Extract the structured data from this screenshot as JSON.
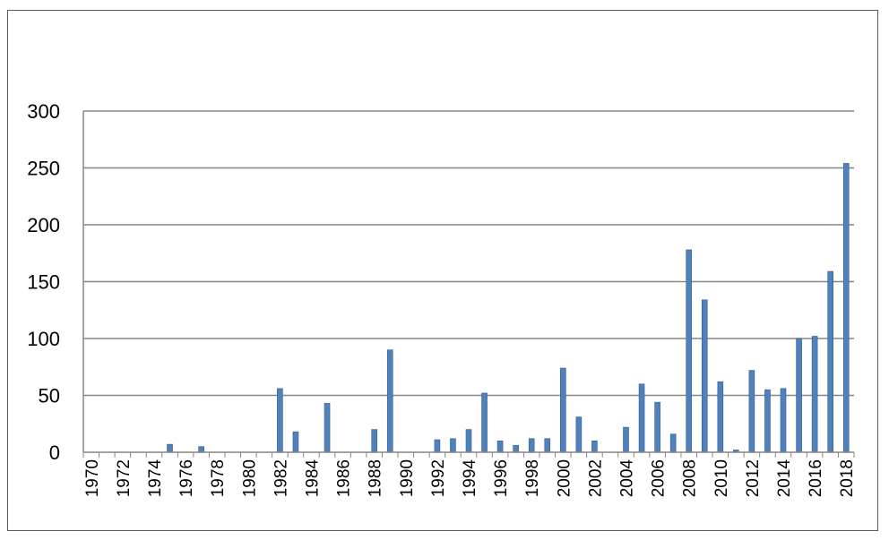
{
  "chart_data": {
    "type": "bar",
    "title": "",
    "xlabel": "",
    "ylabel": "",
    "ylim": [
      0,
      300
    ],
    "yticks": [
      0,
      50,
      100,
      150,
      200,
      250,
      300
    ],
    "grid": true,
    "legend": "none",
    "bar_color": "#4f81bd",
    "bar_edge_color": "#385d8a",
    "x_tick_labels": [
      "1970",
      "1972",
      "1974",
      "1976",
      "1978",
      "1980",
      "1982",
      "1984",
      "1986",
      "1988",
      "1990",
      "1992",
      "1994",
      "1996",
      "1998",
      "2000",
      "2002",
      "2004",
      "2006",
      "2008",
      "2010",
      "2012",
      "2014",
      "2016",
      "2018"
    ],
    "categories": [
      "1970",
      "1971",
      "1972",
      "1973",
      "1974",
      "1975",
      "1976",
      "1977",
      "1978",
      "1979",
      "1980",
      "1981",
      "1982",
      "1983",
      "1984",
      "1985",
      "1986",
      "1987",
      "1988",
      "1989",
      "1990",
      "1991",
      "1992",
      "1993",
      "1994",
      "1995",
      "1996",
      "1997",
      "1998",
      "1999",
      "2000",
      "2001",
      "2002",
      "2003",
      "2004",
      "2005",
      "2006",
      "2007",
      "2008",
      "2009",
      "2010",
      "2011",
      "2012",
      "2013",
      "2014",
      "2015",
      "2016",
      "2017",
      "2018"
    ],
    "values": [
      0,
      0,
      0,
      0,
      0,
      7,
      0,
      5,
      0,
      0,
      0,
      0,
      56,
      18,
      0,
      43,
      0,
      0,
      20,
      90,
      0,
      0,
      11,
      12,
      20,
      52,
      10,
      6,
      12,
      12,
      74,
      31,
      10,
      0,
      22,
      60,
      44,
      16,
      178,
      134,
      62,
      2,
      72,
      55,
      56,
      100,
      102,
      159,
      254
    ]
  }
}
